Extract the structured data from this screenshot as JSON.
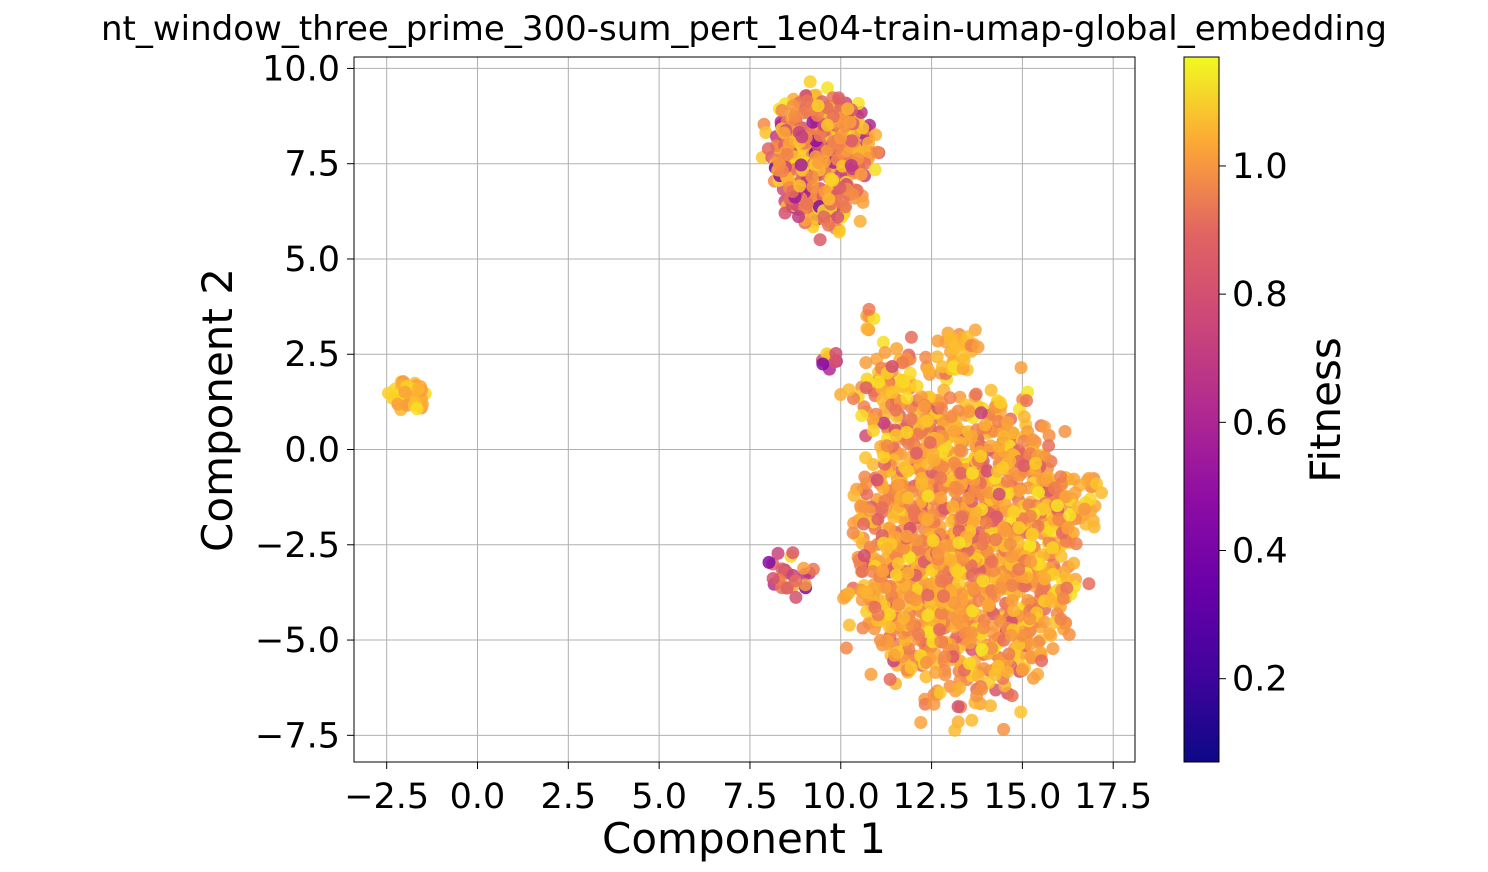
{
  "chart_data": {
    "type": "scatter",
    "title": "nt_window_three_prime_300-sum_pert_1e04-train-umap-global_embedding",
    "xlabel": "Component 1",
    "ylabel": "Component 2",
    "xlim": [
      -3.4,
      18.1
    ],
    "ylim": [
      -8.2,
      10.3
    ],
    "xticks": [
      -2.5,
      0.0,
      2.5,
      5.0,
      7.5,
      10.0,
      12.5,
      15.0,
      17.5
    ],
    "xtick_labels": [
      "−2.5",
      "0.0",
      "2.5",
      "5.0",
      "7.5",
      "10.0",
      "12.5",
      "15.0",
      "17.5"
    ],
    "yticks": [
      -7.5,
      -5.0,
      -2.5,
      0.0,
      2.5,
      5.0,
      7.5,
      10.0
    ],
    "ytick_labels": [
      "−7.5",
      "−5.0",
      "−2.5",
      "0.0",
      "2.5",
      "5.0",
      "7.5",
      "10.0"
    ],
    "grid": true,
    "colormap": "plasma",
    "colorbar": {
      "label": "Fitness",
      "range": [
        0.07,
        1.17
      ],
      "ticks": [
        0.2,
        0.4,
        0.6,
        0.8,
        1.0
      ],
      "tick_labels": [
        "0.2",
        "0.4",
        "0.6",
        "0.8",
        "1.0"
      ]
    },
    "clusters": [
      {
        "center": [
          -1.9,
          1.4
        ],
        "spread": [
          0.35,
          0.25
        ],
        "n": 45,
        "fitness_mean": 1.0,
        "fitness_sd": 0.06
      },
      {
        "center": [
          9.4,
          7.6
        ],
        "spread": [
          0.85,
          1.0
        ],
        "n": 420,
        "fitness_mean": 0.82,
        "fitness_sd": 0.2
      },
      {
        "center": [
          13.4,
          -2.6
        ],
        "spread": [
          1.8,
          2.4
        ],
        "n": 1500,
        "fitness_mean": 0.92,
        "fitness_sd": 0.12
      },
      {
        "center": [
          11.5,
          1.6
        ],
        "spread": [
          0.7,
          0.7
        ],
        "n": 90,
        "fitness_mean": 0.9,
        "fitness_sd": 0.14
      },
      {
        "center": [
          13.2,
          2.6
        ],
        "spread": [
          0.35,
          0.35
        ],
        "n": 30,
        "fitness_mean": 0.98,
        "fitness_sd": 0.06
      },
      {
        "center": [
          9.8,
          2.3
        ],
        "spread": [
          0.2,
          0.15
        ],
        "n": 8,
        "fitness_mean": 0.6,
        "fitness_sd": 0.2
      },
      {
        "center": [
          10.8,
          3.4
        ],
        "spread": [
          0.1,
          0.2
        ],
        "n": 6,
        "fitness_mean": 0.92,
        "fitness_sd": 0.08
      },
      {
        "center": [
          8.6,
          -3.2
        ],
        "spread": [
          0.4,
          0.4
        ],
        "n": 25,
        "fitness_mean": 0.75,
        "fitness_sd": 0.2
      },
      {
        "center": [
          16.3,
          -1.3
        ],
        "spread": [
          0.5,
          0.5
        ],
        "n": 40,
        "fitness_mean": 0.9,
        "fitness_sd": 0.12
      }
    ]
  }
}
